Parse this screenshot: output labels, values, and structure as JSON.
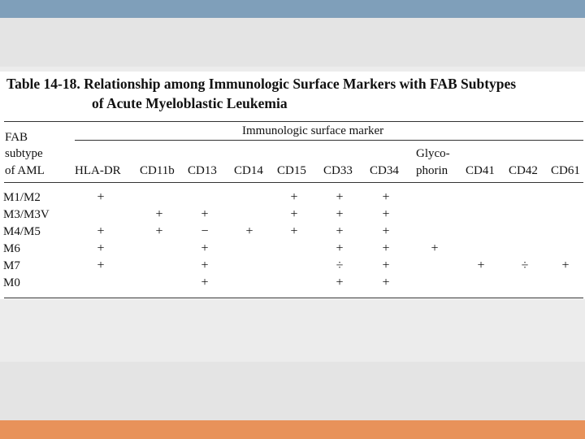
{
  "table": {
    "title_line1": "Table 14-18.  Relationship among Immunologic Surface Markers with FAB Subtypes",
    "title_line2": "of Acute Myeloblastic Leukemia",
    "stub_header": [
      "FAB",
      "subtype",
      "of AML"
    ],
    "spanner": "Immunologic surface marker",
    "columns": [
      "HLA-DR",
      "CD11b",
      "CD13",
      "CD14",
      "CD15",
      "CD33",
      "CD34",
      "Glyco-",
      "phorin",
      "CD41",
      "CD42",
      "CD61"
    ],
    "rows": [
      {
        "label": "M1/M2",
        "cells": [
          "+",
          "",
          "",
          "",
          "+",
          "+",
          "+",
          "",
          "",
          "",
          ""
        ]
      },
      {
        "label": "M3/M3V",
        "cells": [
          "",
          "+",
          "+",
          "",
          "+",
          "+",
          "+",
          "",
          "",
          "",
          ""
        ]
      },
      {
        "label": "M4/M5",
        "cells": [
          "+",
          "+",
          "−",
          "+",
          "+",
          "+",
          "+",
          "",
          "",
          "",
          ""
        ]
      },
      {
        "label": "M6",
        "cells": [
          "+",
          "",
          "+",
          "",
          "",
          "+",
          "+",
          "+",
          "",
          "",
          ""
        ]
      },
      {
        "label": "M7",
        "cells": [
          "+",
          "",
          "+",
          "",
          "",
          "÷",
          "+",
          "",
          "+",
          "÷",
          "+"
        ]
      },
      {
        "label": "M0",
        "cells": [
          "",
          "",
          "+",
          "",
          "",
          "+",
          "+",
          "",
          "",
          "",
          ""
        ]
      }
    ]
  }
}
